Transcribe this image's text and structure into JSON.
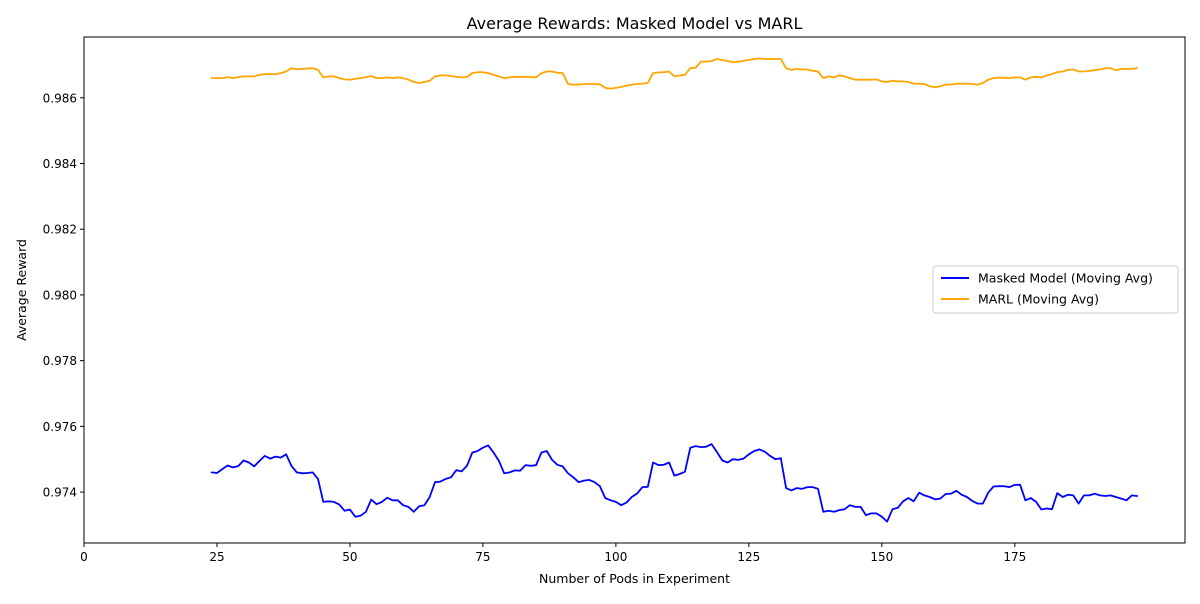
{
  "chart_data": {
    "type": "line",
    "title": "Average Rewards: Masked Model vs MARL",
    "xlabel": "Number of Pods in Experiment",
    "ylabel": "Average Reward",
    "xlim": [
      0,
      207
    ],
    "ylim": [
      0.97245,
      0.98785
    ],
    "xticks": [
      0,
      25,
      50,
      75,
      100,
      125,
      150,
      175
    ],
    "xtick_labels": [
      "0",
      "25",
      "50",
      "75",
      "100",
      "125",
      "150",
      "175"
    ],
    "yticks": [
      0.974,
      0.976,
      0.978,
      0.98,
      0.982,
      0.984,
      0.986
    ],
    "ytick_labels": [
      "0.974",
      "0.976",
      "0.978",
      "0.980",
      "0.982",
      "0.984",
      "0.986"
    ],
    "grid": false,
    "legend_position": "center-right",
    "series": [
      {
        "name": "Masked Model (Moving Avg)",
        "color": "#0000ff",
        "x": [
          24,
          25,
          26,
          27,
          28,
          29,
          30,
          31,
          32,
          33,
          34,
          35,
          36,
          37,
          38,
          39,
          40,
          41,
          42,
          43,
          44,
          45,
          46,
          47,
          48,
          49,
          50,
          51,
          52,
          53,
          54,
          55,
          56,
          57,
          58,
          59,
          60,
          61,
          62,
          63,
          64,
          65,
          66,
          67,
          68,
          69,
          70,
          71,
          72,
          73,
          74,
          75,
          76,
          77,
          78,
          79,
          80,
          81,
          82,
          83,
          84,
          85,
          86,
          87,
          88,
          89,
          90,
          91,
          92,
          93,
          94,
          95,
          96,
          97,
          98,
          99,
          100,
          101,
          102,
          103,
          104,
          105,
          106,
          107,
          108,
          109,
          110,
          111,
          112,
          113,
          114,
          115,
          116,
          117,
          118,
          119,
          120,
          121,
          122,
          123,
          124,
          125,
          126,
          127,
          128,
          129,
          130,
          131,
          132,
          133,
          134,
          135,
          136,
          137,
          138,
          139,
          140,
          141,
          142,
          143,
          144,
          145,
          146,
          147,
          148,
          149,
          150,
          151,
          152,
          153,
          154,
          155,
          156,
          157,
          158,
          159,
          160,
          161,
          162,
          163,
          164,
          165,
          166,
          167,
          168,
          169,
          170,
          171,
          172,
          173,
          174,
          175,
          176,
          177,
          178,
          179,
          180,
          181,
          182,
          183,
          184,
          185,
          186,
          187,
          188,
          189,
          190,
          191,
          192,
          193,
          194,
          195,
          196,
          197,
          198
        ],
        "values": [
          0.9746,
          0.97458,
          0.9747,
          0.97481,
          0.97475,
          0.97479,
          0.97496,
          0.9749,
          0.97478,
          0.97495,
          0.9751,
          0.97502,
          0.97508,
          0.97505,
          0.97515,
          0.9748,
          0.9746,
          0.97457,
          0.97458,
          0.9746,
          0.9744,
          0.9737,
          0.97372,
          0.9737,
          0.97362,
          0.97343,
          0.97347,
          0.97325,
          0.97328,
          0.9734,
          0.97377,
          0.97363,
          0.9737,
          0.97383,
          0.97375,
          0.97375,
          0.9736,
          0.97355,
          0.9734,
          0.97357,
          0.9736,
          0.97385,
          0.9743,
          0.97432,
          0.9744,
          0.97445,
          0.97467,
          0.97463,
          0.9748,
          0.9752,
          0.97525,
          0.97535,
          0.97542,
          0.9752,
          0.97495,
          0.97457,
          0.9746,
          0.97466,
          0.97465,
          0.97482,
          0.9748,
          0.97482,
          0.9752,
          0.97525,
          0.97498,
          0.97483,
          0.97478,
          0.97457,
          0.97445,
          0.9743,
          0.97435,
          0.97437,
          0.9743,
          0.97418,
          0.97382,
          0.97375,
          0.9737,
          0.9736,
          0.97368,
          0.97385,
          0.97396,
          0.97415,
          0.97416,
          0.9749,
          0.97482,
          0.97483,
          0.9749,
          0.9745,
          0.97455,
          0.97462,
          0.97535,
          0.9754,
          0.97537,
          0.97538,
          0.97546,
          0.97522,
          0.97496,
          0.9749,
          0.975,
          0.97498,
          0.97502,
          0.97515,
          0.97525,
          0.9753,
          0.97523,
          0.9751,
          0.975,
          0.97503,
          0.97412,
          0.97405,
          0.97412,
          0.9741,
          0.97415,
          0.97415,
          0.9741,
          0.9734,
          0.97343,
          0.9734,
          0.97345,
          0.97348,
          0.9736,
          0.97355,
          0.97355,
          0.9733,
          0.97335,
          0.97335,
          0.97325,
          0.9731,
          0.97348,
          0.97352,
          0.97372,
          0.97382,
          0.97372,
          0.97398,
          0.9739,
          0.97385,
          0.97378,
          0.9738,
          0.97394,
          0.97395,
          0.97404,
          0.97392,
          0.97385,
          0.97373,
          0.97365,
          0.97365,
          0.97398,
          0.97417,
          0.97418,
          0.97418,
          0.97415,
          0.97422,
          0.97422,
          0.97375,
          0.97382,
          0.9737,
          0.97347,
          0.9735,
          0.97348,
          0.97397,
          0.97385,
          0.97392,
          0.9739,
          0.97365,
          0.9739,
          0.9739,
          0.97395,
          0.9739,
          0.97388,
          0.9739,
          0.97385,
          0.9738,
          0.97375,
          0.9739,
          0.97388
        ]
      },
      {
        "name": "MARL (Moving Avg)",
        "color": "#ffa500",
        "x": [
          24,
          25,
          26,
          27,
          28,
          29,
          30,
          31,
          32,
          33,
          34,
          35,
          36,
          37,
          38,
          39,
          40,
          41,
          42,
          43,
          44,
          45,
          46,
          47,
          48,
          49,
          50,
          51,
          52,
          53,
          54,
          55,
          56,
          57,
          58,
          59,
          60,
          61,
          62,
          63,
          64,
          65,
          66,
          67,
          68,
          69,
          70,
          71,
          72,
          73,
          74,
          75,
          76,
          77,
          78,
          79,
          80,
          81,
          82,
          83,
          84,
          85,
          86,
          87,
          88,
          89,
          90,
          91,
          92,
          93,
          94,
          95,
          96,
          97,
          98,
          99,
          100,
          101,
          102,
          103,
          104,
          105,
          106,
          107,
          108,
          109,
          110,
          111,
          112,
          113,
          114,
          115,
          116,
          117,
          118,
          119,
          120,
          121,
          122,
          123,
          124,
          125,
          126,
          127,
          128,
          129,
          130,
          131,
          132,
          133,
          134,
          135,
          136,
          137,
          138,
          139,
          140,
          141,
          142,
          143,
          144,
          145,
          146,
          147,
          148,
          149,
          150,
          151,
          152,
          153,
          154,
          155,
          156,
          157,
          158,
          159,
          160,
          161,
          162,
          163,
          164,
          165,
          166,
          167,
          168,
          169,
          170,
          171,
          172,
          173,
          174,
          175,
          176,
          177,
          178,
          179,
          180,
          181,
          182,
          183,
          184,
          185,
          186,
          187,
          188,
          189,
          190,
          191,
          192,
          193,
          194,
          195,
          196,
          197,
          198
        ],
        "values": [
          0.9866,
          0.9866,
          0.9866,
          0.98663,
          0.9866,
          0.98663,
          0.98665,
          0.98665,
          0.98665,
          0.9867,
          0.98672,
          0.98672,
          0.98672,
          0.98675,
          0.9868,
          0.9869,
          0.98687,
          0.98688,
          0.98689,
          0.9869,
          0.98685,
          0.98662,
          0.98665,
          0.98665,
          0.9866,
          0.98656,
          0.98655,
          0.98658,
          0.9866,
          0.98663,
          0.98666,
          0.9866,
          0.9866,
          0.98662,
          0.9866,
          0.98662,
          0.9866,
          0.98655,
          0.98648,
          0.98645,
          0.98648,
          0.98652,
          0.98665,
          0.98668,
          0.98668,
          0.98666,
          0.98664,
          0.98662,
          0.98663,
          0.98675,
          0.98678,
          0.98678,
          0.98675,
          0.9867,
          0.98665,
          0.9866,
          0.98662,
          0.98664,
          0.98664,
          0.98664,
          0.98663,
          0.98662,
          0.98675,
          0.9868,
          0.9868,
          0.98676,
          0.98675,
          0.98642,
          0.9864,
          0.9864,
          0.98642,
          0.98642,
          0.98642,
          0.98641,
          0.9863,
          0.98628,
          0.9863,
          0.98633,
          0.98637,
          0.9864,
          0.98642,
          0.98643,
          0.98645,
          0.98675,
          0.98677,
          0.98678,
          0.9868,
          0.98665,
          0.98668,
          0.9867,
          0.9869,
          0.98692,
          0.9871,
          0.9871,
          0.98712,
          0.98718,
          0.98715,
          0.98712,
          0.98708,
          0.9871,
          0.98713,
          0.98715,
          0.98718,
          0.9872,
          0.98718,
          0.98718,
          0.98718,
          0.98718,
          0.9869,
          0.98685,
          0.98688,
          0.98686,
          0.98686,
          0.98682,
          0.9868,
          0.9866,
          0.98665,
          0.98662,
          0.98668,
          0.98665,
          0.9866,
          0.98655,
          0.98655,
          0.98655,
          0.98655,
          0.98656,
          0.9865,
          0.98648,
          0.98652,
          0.9865,
          0.9865,
          0.98648,
          0.98643,
          0.98643,
          0.98642,
          0.98635,
          0.98632,
          0.98635,
          0.9864,
          0.9864,
          0.98643,
          0.98643,
          0.98643,
          0.98642,
          0.9864,
          0.98645,
          0.98655,
          0.9866,
          0.98661,
          0.98661,
          0.9866,
          0.98662,
          0.98662,
          0.98655,
          0.98662,
          0.98664,
          0.98662,
          0.98668,
          0.98672,
          0.98678,
          0.9868,
          0.98685,
          0.98686,
          0.9868,
          0.9868,
          0.98682,
          0.98684,
          0.98686,
          0.9869,
          0.9869,
          0.98684,
          0.98688,
          0.98688,
          0.98688,
          0.9869
        ]
      }
    ]
  }
}
